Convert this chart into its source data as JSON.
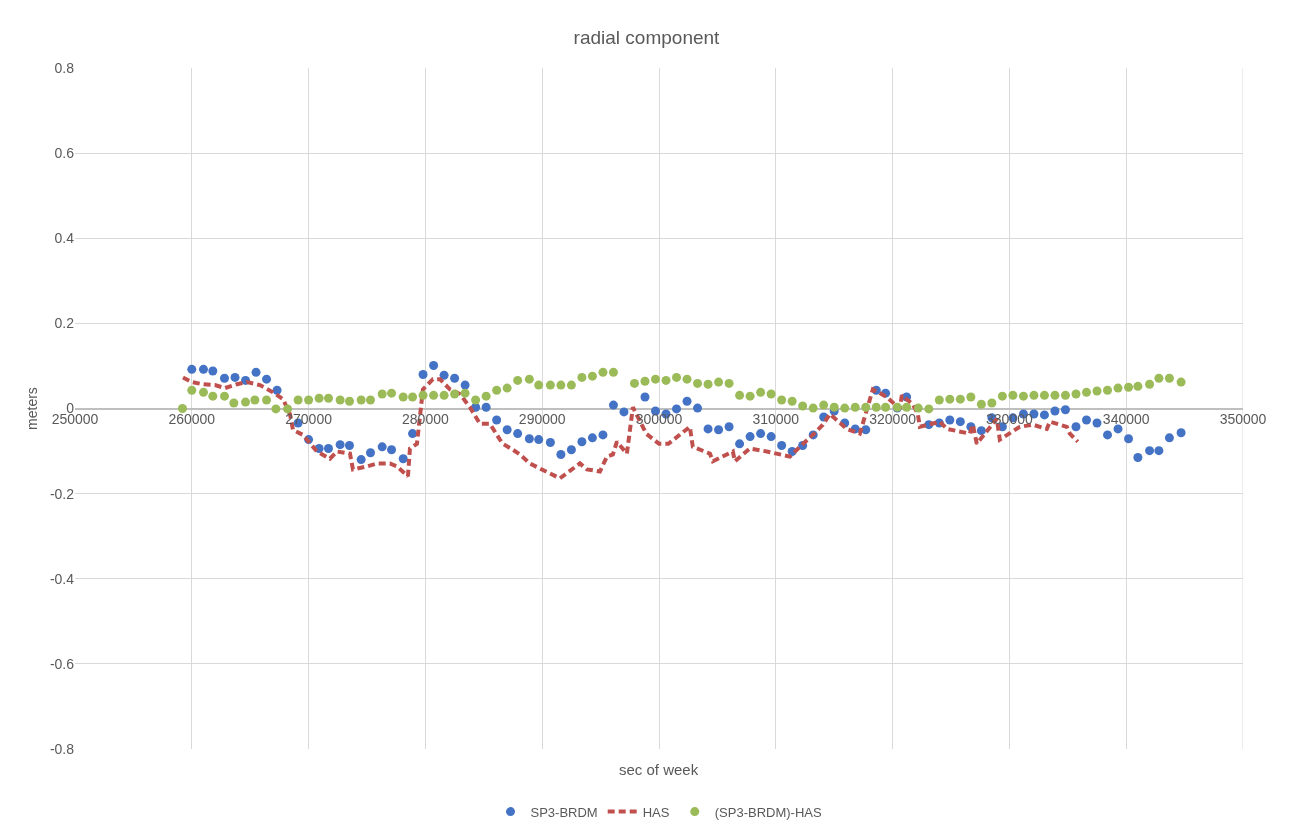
{
  "chart_data": {
    "type": "scatter",
    "title": "radial component",
    "xlabel": "sec of week",
    "ylabel": "meters",
    "xlim": [
      250000,
      350000
    ],
    "xticks": [
      250000,
      260000,
      270000,
      280000,
      290000,
      300000,
      310000,
      320000,
      330000,
      340000,
      350000
    ],
    "ylim": [
      -0.8,
      0.8
    ],
    "yticks": [
      -0.8,
      -0.6,
      -0.4,
      -0.2,
      0.0,
      0.2,
      0.4,
      0.6,
      0.8
    ],
    "grid": true,
    "legend": "bottom",
    "series": [
      {
        "name": "SP3-BRDM",
        "marker": "circle",
        "color": "#4472c4",
        "x": [
          260000,
          261000,
          261800,
          262800,
          263700,
          264600,
          265500,
          266400,
          267300,
          269100,
          270000,
          270900,
          271700,
          272700,
          273500,
          274500,
          275300,
          276300,
          277100,
          278100,
          278900,
          279800,
          280700,
          281600,
          282500,
          283400,
          284300,
          285200,
          286100,
          287000,
          287900,
          288900,
          289700,
          290700,
          291600,
          292500,
          293400,
          294300,
          295200,
          296100,
          297000,
          298800,
          299700,
          300600,
          301500,
          302400,
          303300,
          304200,
          305100,
          306000,
          306900,
          307800,
          308700,
          309600,
          310500,
          311400,
          312300,
          313200,
          314100,
          315000,
          315900,
          316800,
          317700,
          318600,
          319400,
          320400,
          321200,
          323100,
          324000,
          324900,
          325800,
          326700,
          327600,
          328500,
          329400,
          330300,
          331200,
          332100,
          333000,
          333900,
          334800,
          335700,
          336600,
          337500,
          338400,
          339300,
          340200,
          341000,
          342000,
          342800,
          343700,
          344700
        ],
        "values": [
          0.092,
          0.092,
          0.088,
          0.071,
          0.073,
          0.066,
          0.085,
          0.069,
          0.043,
          -0.034,
          -0.073,
          -0.094,
          -0.094,
          -0.085,
          -0.087,
          -0.12,
          -0.104,
          -0.09,
          -0.097,
          -0.118,
          -0.059,
          0.08,
          0.101,
          0.078,
          0.071,
          0.055,
          0.003,
          0.003,
          -0.027,
          -0.05,
          -0.059,
          -0.071,
          -0.073,
          -0.08,
          -0.108,
          -0.097,
          -0.078,
          -0.069,
          -0.062,
          0.008,
          -0.008,
          0.027,
          -0.006,
          -0.013,
          -0.001,
          0.017,
          0.001,
          -0.048,
          -0.05,
          -0.043,
          -0.083,
          -0.066,
          -0.059,
          -0.066,
          -0.087,
          -0.101,
          -0.087,
          -0.062,
          -0.02,
          -0.006,
          -0.034,
          -0.048,
          -0.05,
          0.043,
          0.036,
          0.001,
          0.027,
          -0.038,
          -0.034,
          -0.027,
          -0.031,
          -0.043,
          -0.052,
          -0.022,
          -0.043,
          -0.022,
          -0.013,
          -0.013,
          -0.015,
          -0.006,
          -0.003,
          -0.043,
          -0.027,
          -0.034,
          -0.062,
          -0.048,
          -0.071,
          -0.115,
          -0.099,
          -0.099,
          -0.069,
          -0.057
        ]
      },
      {
        "name": "HAS",
        "type": "line",
        "line_style": "dashed",
        "color": "#c0504d",
        "x": [
          259245,
          260015,
          260957,
          261984,
          262840,
          263867,
          264723,
          265836,
          266949,
          267805,
          268404,
          268661,
          269517,
          270715,
          271828,
          272427,
          273540,
          273797,
          274995,
          275851,
          276964,
          277563,
          278505,
          278676,
          279275,
          279789,
          280645,
          281244,
          282100,
          282956,
          283812,
          284668,
          285524,
          286380,
          286637,
          287493,
          288092,
          288948,
          289804,
          291516,
          293228,
          293827,
          294940,
          295539,
          296053,
          296395,
          297251,
          297765,
          298900,
          300000,
          300800,
          302640,
          302897,
          304356,
          304613,
          306325,
          306496,
          307780,
          309235,
          311204,
          312060,
          313173,
          314029,
          314628,
          316083,
          317196,
          318309,
          319507,
          320620,
          320791,
          321733,
          322161,
          322332,
          324044,
          324643,
          326612,
          326869,
          327211,
          328923,
          329180,
          330892,
          332005,
          333203,
          333460,
          334915,
          335172,
          335857
        ],
        "values": [
          0.073,
          0.062,
          0.057,
          0.055,
          0.048,
          0.057,
          0.062,
          0.055,
          0.038,
          0.022,
          -0.013,
          -0.05,
          -0.062,
          -0.101,
          -0.118,
          -0.101,
          -0.106,
          -0.143,
          -0.136,
          -0.129,
          -0.129,
          -0.136,
          -0.159,
          -0.094,
          -0.083,
          0.045,
          0.069,
          0.069,
          0.045,
          0.034,
          0.003,
          -0.036,
          -0.036,
          -0.073,
          -0.083,
          -0.097,
          -0.108,
          -0.129,
          -0.141,
          -0.164,
          -0.129,
          -0.143,
          -0.148,
          -0.113,
          -0.108,
          -0.078,
          -0.106,
          0.003,
          -0.059,
          -0.083,
          -0.083,
          -0.043,
          -0.09,
          -0.106,
          -0.124,
          -0.101,
          -0.124,
          -0.094,
          -0.101,
          -0.113,
          -0.09,
          -0.062,
          -0.038,
          -0.013,
          -0.048,
          -0.059,
          0.045,
          0.027,
          -0.001,
          0.031,
          0.01,
          -0.013,
          -0.043,
          -0.031,
          -0.048,
          -0.059,
          -0.038,
          -0.083,
          -0.024,
          -0.073,
          -0.043,
          -0.038,
          -0.048,
          -0.031,
          -0.043,
          -0.059,
          -0.078
        ]
      },
      {
        "name": "(SP3-BRDM)-HAS",
        "marker": "circle",
        "color": "#9bbb59",
        "x": [
          259200,
          260000,
          261000,
          261800,
          262800,
          263600,
          264600,
          265400,
          266400,
          267200,
          268200,
          269100,
          270000,
          270900,
          271700,
          272700,
          273500,
          274500,
          275300,
          276300,
          277100,
          278100,
          278900,
          279800,
          280700,
          281600,
          282500,
          283400,
          284300,
          285200,
          286100,
          287000,
          287900,
          288900,
          289700,
          290700,
          291600,
          292500,
          293400,
          294300,
          295200,
          296100,
          297900,
          298800,
          299700,
          300600,
          301500,
          302400,
          303300,
          304200,
          305100,
          306000,
          306900,
          307800,
          308700,
          309600,
          310500,
          311400,
          312300,
          313200,
          314100,
          315000,
          315900,
          316800,
          317700,
          318600,
          319400,
          320400,
          321200,
          322200,
          323100,
          324000,
          324900,
          325800,
          326700,
          327600,
          328500,
          329400,
          330300,
          331200,
          332100,
          333000,
          333900,
          334800,
          335700,
          336600,
          337500,
          338400,
          339300,
          340200,
          341000,
          342000,
          342800,
          343700,
          344700
        ],
        "values": [
          0.0,
          0.043,
          0.038,
          0.029,
          0.029,
          0.013,
          0.015,
          0.02,
          0.02,
          -0.001,
          -0.001,
          0.02,
          0.02,
          0.024,
          0.024,
          0.02,
          0.017,
          0.02,
          0.02,
          0.034,
          0.036,
          0.027,
          0.027,
          0.031,
          0.031,
          0.031,
          0.034,
          0.036,
          0.02,
          0.029,
          0.043,
          0.048,
          0.066,
          0.069,
          0.055,
          0.055,
          0.055,
          0.055,
          0.073,
          0.076,
          0.085,
          0.085,
          0.059,
          0.064,
          0.069,
          0.066,
          0.073,
          0.069,
          0.059,
          0.057,
          0.062,
          0.059,
          0.031,
          0.029,
          0.038,
          0.034,
          0.02,
          0.017,
          0.006,
          0.001,
          0.008,
          0.003,
          0.001,
          0.003,
          0.003,
          0.003,
          0.003,
          0.003,
          0.003,
          0.001,
          -0.001,
          0.02,
          0.022,
          0.022,
          0.027,
          0.01,
          0.013,
          0.029,
          0.031,
          0.029,
          0.031,
          0.031,
          0.031,
          0.031,
          0.034,
          0.038,
          0.041,
          0.043,
          0.048,
          0.05,
          0.052,
          0.057,
          0.071,
          0.071,
          0.062
        ]
      }
    ]
  }
}
